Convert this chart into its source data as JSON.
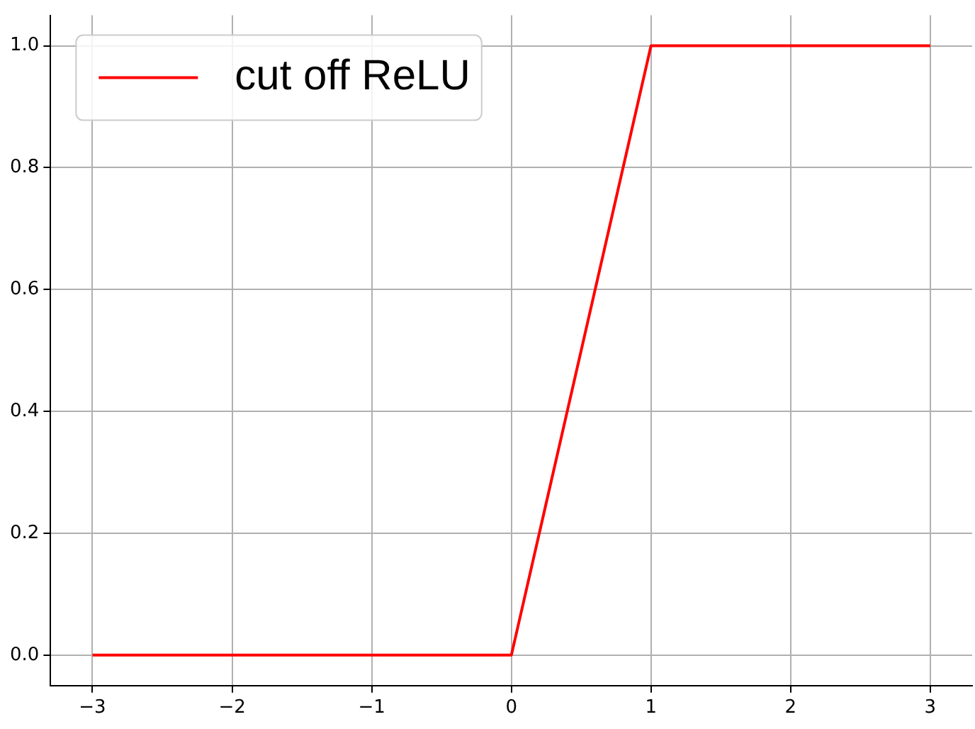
{
  "chart_data": {
    "type": "line",
    "x": [
      -3,
      0,
      1,
      3
    ],
    "series": [
      {
        "name": "cut off ReLU",
        "color": "#ff0000",
        "values": [
          0,
          0,
          1,
          1
        ]
      }
    ],
    "xlim": [
      -3.3,
      3.3
    ],
    "ylim": [
      -0.05,
      1.05
    ],
    "xticks": [
      {
        "value": -3,
        "label": "−3"
      },
      {
        "value": -2,
        "label": "−2"
      },
      {
        "value": -1,
        "label": "−1"
      },
      0,
      1,
      2,
      3
    ],
    "yticks": [
      {
        "value": 0,
        "label": "0.0"
      },
      {
        "value": 0.2,
        "label": "0.2"
      },
      {
        "value": 0.4,
        "label": "0.4"
      },
      {
        "value": 0.6,
        "label": "0.6"
      },
      {
        "value": 0.8,
        "label": "0.8"
      },
      {
        "value": 1,
        "label": "1.0"
      }
    ],
    "grid": true,
    "legend": "top left",
    "marker": "none",
    "line_style": "solid"
  }
}
